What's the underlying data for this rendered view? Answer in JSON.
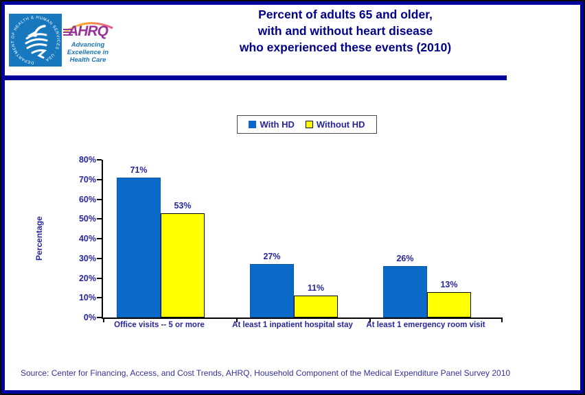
{
  "header": {
    "hhs_seal_text": "DEPARTMENT OF HEALTH & HUMAN SERVICES · USA",
    "ahrq_acronym": "AHRQ",
    "ahrq_tagline_lines": [
      "Advancing",
      "Excellence in",
      "Health Care"
    ],
    "title_lines": [
      "Percent of adults 65 and older,",
      "with and without heart disease",
      "who experienced these events (2010)"
    ]
  },
  "legend": {
    "items": [
      {
        "label": "With HD"
      },
      {
        "label": "Without HD"
      }
    ]
  },
  "chart_data": {
    "type": "bar",
    "title": "Percent of adults 65 and older, with and without heart disease who experienced these events (2010)",
    "categories": [
      "Office visits -- 5 or more",
      "At least 1 inpatient hospital stay",
      "At least 1 emergency room visit"
    ],
    "series": [
      {
        "name": "With HD",
        "color": "#0B6AC7",
        "values": [
          71,
          27,
          26
        ]
      },
      {
        "name": "Without HD",
        "color": "#FFFF00",
        "values": [
          53,
          11,
          13
        ]
      }
    ],
    "xlabel": "",
    "ylabel": "Percentage",
    "ylim": [
      0,
      80
    ],
    "ytick_step": 10,
    "ytick_format": "{v}%",
    "value_label_format": "{v}%",
    "grid": false,
    "legend_position": "top-center"
  },
  "footer": {
    "source": "Source: Center for Financing, Access, and Cost Trends, AHRQ, Household Component of the Medical Expenditure Panel Survey 2010"
  },
  "colors": {
    "title_navy": "#00008B",
    "label_navy": "#26269B",
    "divider_navy": "#000099",
    "border_navy": "#0000A1",
    "hhs_blue": "#1878BE",
    "ahrq_purple": "#993399",
    "tagline_blue": "#1B75BB",
    "bar_blue": "#0B6AC7",
    "bar_yellow": "#FFFF00"
  }
}
